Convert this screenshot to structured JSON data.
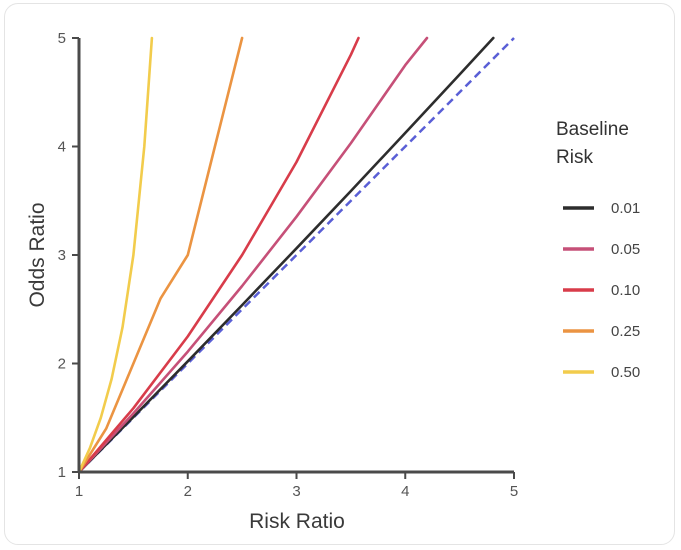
{
  "chart_data": {
    "type": "line",
    "xlabel": "Risk Ratio",
    "ylabel": "Odds Ratio",
    "xlim": [
      1,
      5
    ],
    "ylim": [
      1,
      5
    ],
    "x_ticks": [
      "1",
      "2",
      "3",
      "4",
      "5"
    ],
    "y_ticks": [
      "1",
      "2",
      "3",
      "4",
      "5"
    ],
    "grid": false,
    "legend": {
      "title_lines": [
        "Baseline",
        "Risk"
      ],
      "placement": "right"
    },
    "reference_line": {
      "x": [
        1,
        5
      ],
      "y": [
        1,
        5
      ],
      "style": "dashed",
      "color": "#5a5fd6"
    },
    "series": [
      {
        "name": "0.01",
        "baseline": 0.01,
        "color": "#2d2d2d",
        "x": [
          1.0,
          1.5,
          2.0,
          2.5,
          3.0,
          3.5,
          4.0,
          4.5,
          4.81
        ],
        "y": [
          1.0,
          1.508,
          2.02,
          2.538,
          3.062,
          3.59,
          4.125,
          4.664,
          5.0
        ]
      },
      {
        "name": "0.05",
        "baseline": 0.05,
        "color": "#c65078",
        "x": [
          1.0,
          1.5,
          2.0,
          2.5,
          3.0,
          3.5,
          4.0,
          4.2
        ],
        "y": [
          1.0,
          1.54,
          2.11,
          2.714,
          3.353,
          4.031,
          4.75,
          5.0
        ]
      },
      {
        "name": "0.10",
        "baseline": 0.1,
        "color": "#d83c4a",
        "x": [
          1.0,
          1.5,
          2.0,
          2.5,
          3.0,
          3.5,
          3.57
        ],
        "y": [
          1.0,
          1.588,
          2.25,
          3.0,
          3.857,
          4.846,
          5.0
        ]
      },
      {
        "name": "0.25",
        "baseline": 0.25,
        "color": "#eb9442",
        "x": [
          1.0,
          1.25,
          1.5,
          1.75,
          2.0,
          2.25,
          2.5
        ],
        "y": [
          1.0,
          1.4,
          2.0,
          2.6,
          3.0,
          4.0,
          5.0
        ]
      },
      {
        "name": "0.50",
        "baseline": 0.5,
        "color": "#f2cc4c",
        "x": [
          1.0,
          1.1,
          1.2,
          1.3,
          1.4,
          1.5,
          1.6,
          1.67
        ],
        "y": [
          1.0,
          1.22,
          1.5,
          1.857,
          2.333,
          3.0,
          4.0,
          5.0
        ]
      }
    ]
  }
}
